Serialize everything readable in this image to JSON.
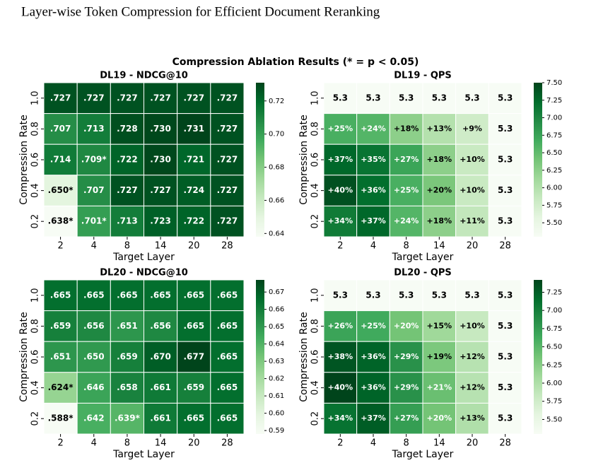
{
  "header": {
    "title": "Layer-wise Token Compression for Efficient Document Reranking"
  },
  "figure": {
    "title": "Compression Ablation Results (* = p < 0.05)"
  },
  "chart_data": [
    {
      "type": "heatmap",
      "title": "DL19 - NDCG@10",
      "x_label": "Target Layer",
      "y_label": "Compression Rate",
      "x_categories": [
        "2",
        "4",
        "8",
        "14",
        "20",
        "28"
      ],
      "y_categories": [
        "1.0",
        "0.8",
        "0.6",
        "0.4",
        "0.2"
      ],
      "values": [
        [
          0.727,
          0.727,
          0.727,
          0.727,
          0.727,
          0.727
        ],
        [
          0.707,
          0.713,
          0.728,
          0.73,
          0.731,
          0.727
        ],
        [
          0.714,
          0.709,
          0.722,
          0.73,
          0.721,
          0.727
        ],
        [
          0.65,
          0.707,
          0.727,
          0.727,
          0.724,
          0.727
        ],
        [
          0.638,
          0.701,
          0.713,
          0.723,
          0.722,
          0.727
        ]
      ],
      "value_labels": [
        [
          ".727",
          ".727",
          ".727",
          ".727",
          ".727",
          ".727"
        ],
        [
          ".707",
          ".713",
          ".728",
          ".730",
          ".731",
          ".727"
        ],
        [
          ".714",
          ".709*",
          ".722",
          ".730",
          ".721",
          ".727"
        ],
        [
          ".650*",
          ".707",
          ".727",
          ".727",
          ".724",
          ".727"
        ],
        [
          ".638*",
          ".701*",
          ".713",
          ".723",
          ".722",
          ".727"
        ]
      ],
      "colormap": "Greens",
      "clim": [
        0.638,
        0.731
      ],
      "cticks": [
        0.64,
        0.66,
        0.68,
        {
          "value": 0.7,
          "label": "0.70"
        },
        0.72
      ]
    },
    {
      "type": "heatmap",
      "title": "DL19 - QPS",
      "x_label": "Target Layer",
      "y_label": "Compression Rate",
      "x_categories": [
        "2",
        "4",
        "8",
        "14",
        "20",
        "28"
      ],
      "y_categories": [
        "1.0",
        "0.8",
        "0.6",
        "0.4",
        "0.2"
      ],
      "values": [
        [
          5.3,
          5.3,
          5.3,
          5.3,
          5.3,
          5.3
        ],
        [
          6.63,
          6.57,
          6.25,
          5.99,
          5.78,
          5.3
        ],
        [
          7.26,
          7.16,
          6.73,
          6.25,
          5.83,
          5.3
        ],
        [
          7.42,
          7.21,
          6.63,
          6.36,
          5.83,
          5.3
        ],
        [
          7.1,
          7.26,
          6.57,
          6.25,
          5.88,
          5.3
        ]
      ],
      "gains": [
        [
          null,
          null,
          null,
          null,
          null,
          null
        ],
        [
          25,
          24,
          18,
          13,
          9,
          null
        ],
        [
          37,
          35,
          27,
          18,
          10,
          null
        ],
        [
          40,
          36,
          25,
          20,
          10,
          null
        ],
        [
          34,
          37,
          24,
          18,
          11,
          null
        ]
      ],
      "gain_labels": [
        [
          null,
          null,
          null,
          null,
          null,
          null
        ],
        [
          "+25%",
          "+24%",
          "+18%",
          "+13%",
          "+9%",
          null
        ],
        [
          "+37%",
          "+35%",
          "+27%",
          "+18%",
          "+10%",
          null
        ],
        [
          "+40%",
          "+36%",
          "+25%",
          "+20%",
          "+10%",
          null
        ],
        [
          "+34%",
          "+37%",
          "+24%",
          "+18%",
          "+11%",
          null
        ]
      ],
      "colormap": "Greens",
      "clim": [
        5.3,
        7.5
      ],
      "cticks": [
        {
          "value": 5.5,
          "label": "5.50"
        },
        5.75,
        {
          "value": 6.0,
          "label": "6.00"
        },
        6.25,
        {
          "value": 6.5,
          "label": "6.50"
        },
        6.75,
        {
          "value": 7.0,
          "label": "7.00"
        },
        7.25,
        {
          "value": 7.5,
          "label": "7.50"
        }
      ]
    },
    {
      "type": "heatmap",
      "title": "DL20 - NDCG@10",
      "x_label": "Target Layer",
      "y_label": "Compression Rate",
      "x_categories": [
        "2",
        "4",
        "8",
        "14",
        "20",
        "28"
      ],
      "y_categories": [
        "1.0",
        "0.8",
        "0.6",
        "0.4",
        "0.2"
      ],
      "values": [
        [
          0.665,
          0.665,
          0.665,
          0.665,
          0.665,
          0.665
        ],
        [
          0.659,
          0.656,
          0.651,
          0.656,
          0.665,
          0.665
        ],
        [
          0.651,
          0.65,
          0.659,
          0.67,
          0.677,
          0.665
        ],
        [
          0.624,
          0.646,
          0.658,
          0.661,
          0.659,
          0.665
        ],
        [
          0.588,
          0.642,
          0.639,
          0.661,
          0.665,
          0.665
        ]
      ],
      "value_labels": [
        [
          ".665",
          ".665",
          ".665",
          ".665",
          ".665",
          ".665"
        ],
        [
          ".659",
          ".656",
          ".651",
          ".656",
          ".665",
          ".665"
        ],
        [
          ".651",
          ".650",
          ".659",
          ".670",
          ".677",
          ".665"
        ],
        [
          ".624*",
          ".646",
          ".658",
          ".661",
          ".659",
          ".665"
        ],
        [
          ".588*",
          ".642",
          ".639*",
          ".661",
          ".665",
          ".665"
        ]
      ],
      "colormap": "Greens",
      "clim": [
        0.588,
        0.677
      ],
      "cticks": [
        0.59,
        {
          "value": 0.6,
          "label": "0.60"
        },
        0.61,
        0.62,
        0.63,
        0.64,
        0.65,
        0.66,
        0.67
      ]
    },
    {
      "type": "heatmap",
      "title": "DL20 - QPS",
      "x_label": "Target Layer",
      "y_label": "Compression Rate",
      "x_categories": [
        "2",
        "4",
        "8",
        "14",
        "20",
        "28"
      ],
      "y_categories": [
        "1.0",
        "0.8",
        "0.6",
        "0.4",
        "0.2"
      ],
      "values": [
        [
          5.3,
          5.3,
          5.3,
          5.3,
          5.3,
          5.3
        ],
        [
          6.68,
          6.63,
          6.36,
          6.1,
          5.83,
          5.3
        ],
        [
          7.31,
          7.21,
          6.84,
          6.31,
          5.94,
          5.3
        ],
        [
          7.42,
          7.21,
          6.84,
          6.41,
          5.94,
          5.3
        ],
        [
          7.1,
          7.26,
          6.73,
          6.36,
          5.99,
          5.3
        ]
      ],
      "gains": [
        [
          null,
          null,
          null,
          null,
          null,
          null
        ],
        [
          26,
          25,
          20,
          15,
          10,
          null
        ],
        [
          38,
          36,
          29,
          19,
          12,
          null
        ],
        [
          40,
          36,
          29,
          21,
          12,
          null
        ],
        [
          34,
          37,
          27,
          20,
          13,
          null
        ]
      ],
      "gain_labels": [
        [
          null,
          null,
          null,
          null,
          null,
          null
        ],
        [
          "+26%",
          "+25%",
          "+20%",
          "+15%",
          "+10%",
          null
        ],
        [
          "+38%",
          "+36%",
          "+29%",
          "+19%",
          "+12%",
          null
        ],
        [
          "+40%",
          "+36%",
          "+29%",
          "+21%",
          "+12%",
          null
        ],
        [
          "+34%",
          "+37%",
          "+27%",
          "+20%",
          "+13%",
          null
        ]
      ],
      "colormap": "Greens",
      "clim": [
        5.3,
        7.42
      ],
      "cticks": [
        {
          "value": 5.5,
          "label": "5.50"
        },
        5.75,
        {
          "value": 6.0,
          "label": "6.00"
        },
        6.25,
        {
          "value": 6.5,
          "label": "6.50"
        },
        6.75,
        {
          "value": 7.0,
          "label": "7.00"
        },
        7.25
      ]
    }
  ]
}
